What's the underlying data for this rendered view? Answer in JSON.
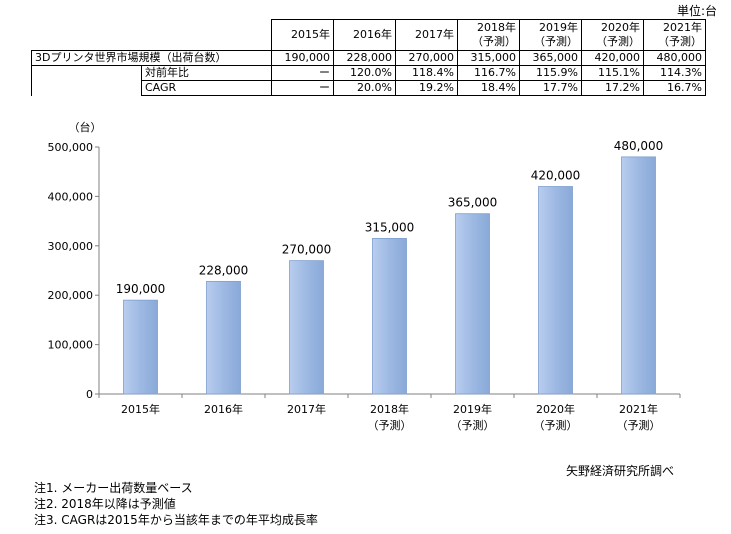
{
  "unit_label": "単位:台",
  "table": {
    "headers": [
      "2015年",
      "2016年",
      "2017年",
      "2018年\n（予測）",
      "2019年\n（予測）",
      "2020年\n（予測）",
      "2021年\n（予測）"
    ],
    "header_lines": [
      [
        "2015年"
      ],
      [
        "2016年"
      ],
      [
        "2017年"
      ],
      [
        "2018年",
        "（予測）"
      ],
      [
        "2019年",
        "（予測）"
      ],
      [
        "2020年",
        "（予測）"
      ],
      [
        "2021年",
        "（予測）"
      ]
    ],
    "rows": [
      {
        "label": "3Dプリンタ世界市場規模（出荷台数）",
        "values": [
          "190,000",
          "228,000",
          "270,000",
          "315,000",
          "365,000",
          "420,000",
          "480,000"
        ]
      },
      {
        "label": "対前年比",
        "values": [
          "ー",
          "120.0%",
          "118.4%",
          "116.7%",
          "115.9%",
          "115.1%",
          "114.3%"
        ]
      },
      {
        "label": "CAGR",
        "values": [
          "ー",
          "20.0%",
          "19.2%",
          "18.4%",
          "17.7%",
          "17.2%",
          "16.7%"
        ]
      }
    ]
  },
  "chart_data": {
    "type": "bar",
    "categories": [
      [
        "2015年"
      ],
      [
        "2016年"
      ],
      [
        "2017年"
      ],
      [
        "2018年",
        "（予測）"
      ],
      [
        "2019年",
        "（予測）"
      ],
      [
        "2020年",
        "（予測）"
      ],
      [
        "2021年",
        "（予測）"
      ]
    ],
    "values": [
      190000,
      228000,
      270000,
      315000,
      365000,
      420000,
      480000
    ],
    "data_labels": [
      "190,000",
      "228,000",
      "270,000",
      "315,000",
      "365,000",
      "420,000",
      "480,000"
    ],
    "y_unit_label": "（台）",
    "ylim": [
      0,
      500000
    ],
    "yticks": [
      0,
      100000,
      200000,
      300000,
      400000,
      500000
    ],
    "ytick_labels": [
      "0",
      "100,000",
      "200,000",
      "300,000",
      "400,000",
      "500,000"
    ],
    "bar_color": "#9db9e3",
    "bar_edge_color": "#7f9fcf",
    "grid": false
  },
  "source": "矢野経済研究所調べ",
  "notes": [
    "注1. メーカー出荷数量ベース",
    "注2. 2018年以降は予測値",
    "注3. CAGRは2015年から当該年までの年平均成長率"
  ]
}
